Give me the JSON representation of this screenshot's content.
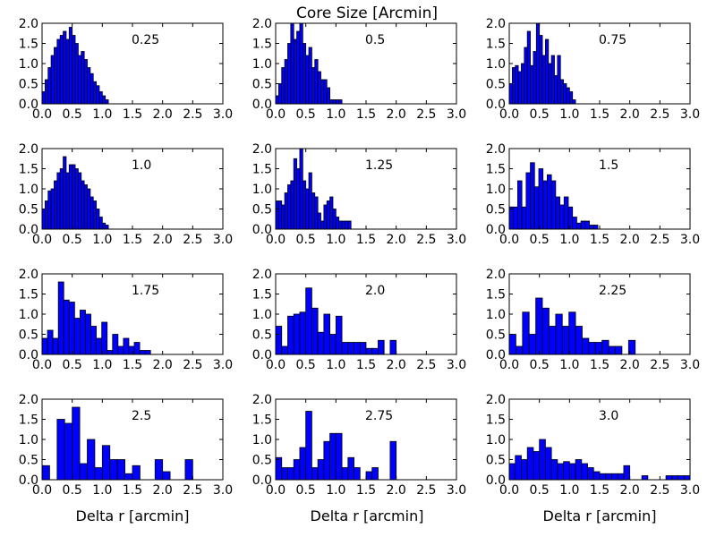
{
  "figure": {
    "title": "Core Size [Arcmin]",
    "xlabel": "Delta r [arcmin]",
    "colors": {
      "bar_fill": "#0000ff",
      "bar_edge": "#000000",
      "axes": "#000000",
      "background": "#ffffff"
    }
  },
  "chart_data": [
    {
      "type": "bar",
      "label": "0.25",
      "xlim": [
        0,
        3
      ],
      "ylim": [
        0,
        2
      ],
      "xticks": [
        "0.0",
        "0.5",
        "1.0",
        "1.5",
        "2.0",
        "2.5",
        "3.0"
      ],
      "yticks": [
        "0.0",
        "0.5",
        "1.0",
        "1.5",
        "2.0"
      ],
      "bin_width": 0.05,
      "x": [
        0.0,
        0.05,
        0.1,
        0.15,
        0.2,
        0.25,
        0.3,
        0.35,
        0.4,
        0.45,
        0.5,
        0.55,
        0.6,
        0.65,
        0.7,
        0.75,
        0.8,
        0.85,
        0.9,
        0.95,
        1.0,
        1.05
      ],
      "values": [
        0.3,
        0.6,
        0.9,
        1.2,
        1.4,
        1.6,
        1.7,
        1.8,
        1.6,
        1.9,
        1.7,
        1.5,
        1.2,
        1.3,
        1.1,
        0.9,
        0.75,
        0.55,
        0.45,
        0.3,
        0.2,
        0.1
      ]
    },
    {
      "type": "bar",
      "label": "0.5",
      "xlim": [
        0,
        3
      ],
      "ylim": [
        0,
        2
      ],
      "xticks": [
        "0.0",
        "0.5",
        "1.0",
        "1.5",
        "2.0",
        "2.5",
        "3.0"
      ],
      "yticks": [
        "0.0",
        "0.5",
        "1.0",
        "1.5",
        "2.0"
      ],
      "bin_width": 0.05,
      "x": [
        0.0,
        0.05,
        0.1,
        0.15,
        0.2,
        0.25,
        0.3,
        0.35,
        0.4,
        0.45,
        0.5,
        0.55,
        0.6,
        0.65,
        0.7,
        0.75,
        0.8,
        0.85,
        0.9,
        0.95,
        1.0,
        1.05
      ],
      "values": [
        0.2,
        0.5,
        0.9,
        1.1,
        1.5,
        2.0,
        1.6,
        1.8,
        2.0,
        1.5,
        1.2,
        1.4,
        0.9,
        1.1,
        0.8,
        0.6,
        0.6,
        0.4,
        0.1,
        0.1,
        0.1,
        0.1
      ]
    },
    {
      "type": "bar",
      "label": "0.75",
      "xlim": [
        0,
        3
      ],
      "ylim": [
        0,
        2
      ],
      "xticks": [
        "0.0",
        "0.5",
        "1.0",
        "1.5",
        "2.0",
        "2.5",
        "3.0"
      ],
      "yticks": [
        "0.0",
        "0.5",
        "1.0",
        "1.5",
        "2.0"
      ],
      "bin_width": 0.05,
      "x": [
        0.0,
        0.05,
        0.1,
        0.15,
        0.2,
        0.25,
        0.3,
        0.35,
        0.4,
        0.45,
        0.5,
        0.55,
        0.6,
        0.65,
        0.7,
        0.75,
        0.8,
        0.85,
        0.9,
        0.95,
        1.0,
        1.05
      ],
      "values": [
        0.5,
        0.9,
        0.95,
        0.8,
        1.0,
        1.4,
        1.8,
        0.95,
        1.3,
        2.0,
        1.7,
        1.2,
        1.6,
        1.0,
        1.2,
        0.7,
        1.2,
        0.6,
        0.5,
        0.4,
        0.3,
        0.1
      ]
    },
    {
      "type": "bar",
      "label": "1.0",
      "xlim": [
        0,
        3
      ],
      "ylim": [
        0,
        2
      ],
      "xticks": [
        "0.0",
        "0.5",
        "1.0",
        "1.5",
        "2.0",
        "2.5",
        "3.0"
      ],
      "yticks": [
        "0.0",
        "0.5",
        "1.0",
        "1.5",
        "2.0"
      ],
      "bin_width": 0.05,
      "x": [
        0.0,
        0.05,
        0.1,
        0.15,
        0.2,
        0.25,
        0.3,
        0.35,
        0.4,
        0.45,
        0.5,
        0.55,
        0.6,
        0.65,
        0.7,
        0.75,
        0.8,
        0.85,
        0.9,
        0.95,
        1.0,
        1.05
      ],
      "values": [
        0.5,
        0.7,
        0.95,
        1.0,
        1.2,
        1.4,
        1.5,
        1.8,
        1.4,
        1.6,
        1.6,
        1.5,
        1.4,
        1.2,
        1.1,
        1.0,
        0.8,
        0.7,
        0.5,
        0.3,
        0.15,
        0.1
      ]
    },
    {
      "type": "bar",
      "label": "1.25",
      "xlim": [
        0,
        3
      ],
      "ylim": [
        0,
        2
      ],
      "xticks": [
        "0.0",
        "0.5",
        "1.0",
        "1.5",
        "2.0",
        "2.5",
        "3.0"
      ],
      "yticks": [
        "0.0",
        "0.5",
        "1.0",
        "1.5",
        "2.0"
      ],
      "bin_width": 0.05,
      "x": [
        0.0,
        0.05,
        0.1,
        0.15,
        0.2,
        0.25,
        0.3,
        0.35,
        0.4,
        0.45,
        0.5,
        0.55,
        0.6,
        0.65,
        0.7,
        0.75,
        0.8,
        0.85,
        0.9,
        0.95,
        1.0,
        1.05,
        1.1,
        1.15,
        1.2,
        1.25
      ],
      "values": [
        0.7,
        0.7,
        0.6,
        0.9,
        1.1,
        1.2,
        1.75,
        1.5,
        2.0,
        1.2,
        1.0,
        1.4,
        0.9,
        0.8,
        0.4,
        0.2,
        0.6,
        0.7,
        0.8,
        0.5,
        0.3,
        0.2,
        0.2,
        0.2,
        0.2,
        0.0
      ]
    },
    {
      "type": "bar",
      "label": "1.5",
      "xlim": [
        0,
        3
      ],
      "ylim": [
        0,
        2
      ],
      "xticks": [
        "0.0",
        "0.5",
        "1.0",
        "1.5",
        "2.0",
        "2.5",
        "3.0"
      ],
      "yticks": [
        "0.0",
        "0.5",
        "1.0",
        "1.5",
        "2.0"
      ],
      "bin_width": 0.07,
      "x": [
        0.0,
        0.07,
        0.14,
        0.21,
        0.28,
        0.35,
        0.42,
        0.49,
        0.56,
        0.63,
        0.7,
        0.77,
        0.84,
        0.91,
        0.98,
        1.05,
        1.12,
        1.19,
        1.26,
        1.33,
        1.4
      ],
      "values": [
        0.55,
        0.55,
        1.2,
        0.55,
        1.4,
        1.65,
        1.05,
        1.5,
        1.2,
        1.35,
        1.2,
        0.8,
        0.6,
        0.8,
        0.55,
        0.3,
        0.15,
        0.2,
        0.2,
        0.1,
        0.1
      ]
    },
    {
      "type": "bar",
      "label": "1.75",
      "xlim": [
        0,
        3
      ],
      "ylim": [
        0,
        2
      ],
      "xticks": [
        "0.0",
        "0.5",
        "1.0",
        "1.5",
        "2.0",
        "2.5",
        "3.0"
      ],
      "yticks": [
        "0.0",
        "0.5",
        "1.0",
        "1.5",
        "2.0"
      ],
      "bin_width": 0.09,
      "x": [
        0.0,
        0.09,
        0.18,
        0.27,
        0.36,
        0.45,
        0.54,
        0.63,
        0.72,
        0.81,
        0.9,
        0.99,
        1.08,
        1.17,
        1.26,
        1.35,
        1.44,
        1.53,
        1.62,
        1.71,
        1.8
      ],
      "values": [
        0.4,
        0.6,
        0.4,
        1.8,
        1.35,
        1.3,
        0.9,
        1.1,
        1.0,
        0.7,
        0.4,
        0.8,
        0.1,
        0.5,
        0.2,
        0.4,
        0.2,
        0.3,
        0.1,
        0.1,
        0.0
      ]
    },
    {
      "type": "bar",
      "label": "2.0",
      "xlim": [
        0,
        3
      ],
      "ylim": [
        0,
        2
      ],
      "xticks": [
        "0.0",
        "0.5",
        "1.0",
        "1.5",
        "2.0",
        "2.5",
        "3.0"
      ],
      "yticks": [
        "0.0",
        "0.5",
        "1.0",
        "1.5",
        "2.0"
      ],
      "bin_width": 0.1,
      "x": [
        0.0,
        0.1,
        0.2,
        0.3,
        0.4,
        0.5,
        0.6,
        0.7,
        0.8,
        0.9,
        1.0,
        1.1,
        1.2,
        1.3,
        1.4,
        1.5,
        1.6,
        1.7,
        1.8,
        1.9
      ],
      "values": [
        0.7,
        0.2,
        0.95,
        1.0,
        1.05,
        1.65,
        1.15,
        0.55,
        1.0,
        0.5,
        0.95,
        0.3,
        0.3,
        0.3,
        0.3,
        0.15,
        0.15,
        0.35,
        0.0,
        0.35
      ]
    },
    {
      "type": "bar",
      "label": "2.25",
      "xlim": [
        0,
        3
      ],
      "ylim": [
        0,
        2
      ],
      "xticks": [
        "0.0",
        "0.5",
        "1.0",
        "1.5",
        "2.0",
        "2.5",
        "3.0"
      ],
      "yticks": [
        "0.0",
        "0.5",
        "1.0",
        "1.5",
        "2.0"
      ],
      "bin_width": 0.11,
      "x": [
        0.0,
        0.11,
        0.22,
        0.33,
        0.44,
        0.55,
        0.66,
        0.77,
        0.88,
        0.99,
        1.1,
        1.21,
        1.32,
        1.43,
        1.54,
        1.65,
        1.76,
        1.87,
        1.98
      ],
      "values": [
        0.5,
        0.2,
        1.05,
        0.5,
        1.4,
        1.15,
        0.7,
        1.0,
        0.7,
        1.05,
        0.7,
        0.4,
        0.3,
        0.3,
        0.35,
        0.2,
        0.2,
        0.0,
        0.35
      ]
    },
    {
      "type": "bar",
      "label": "2.5",
      "xlim": [
        0,
        3
      ],
      "ylim": [
        0,
        2
      ],
      "xticks": [
        "0.0",
        "0.5",
        "1.0",
        "1.5",
        "2.0",
        "2.5",
        "3.0"
      ],
      "yticks": [
        "0.0",
        "0.5",
        "1.0",
        "1.5",
        "2.0"
      ],
      "bin_width": 0.125,
      "x": [
        0.0,
        0.125,
        0.25,
        0.375,
        0.5,
        0.625,
        0.75,
        0.875,
        1.0,
        1.125,
        1.25,
        1.375,
        1.5,
        1.625,
        1.75,
        1.875,
        2.0,
        2.125,
        2.25,
        2.375
      ],
      "values": [
        0.35,
        0.0,
        1.5,
        1.4,
        1.8,
        0.4,
        1.0,
        0.3,
        0.85,
        0.5,
        0.5,
        0.15,
        0.35,
        0.0,
        0.0,
        0.5,
        0.2,
        0.0,
        0.0,
        0.5
      ]
    },
    {
      "type": "bar",
      "label": "2.75",
      "xlim": [
        0,
        3
      ],
      "ylim": [
        0,
        2
      ],
      "xticks": [
        "0.0",
        "0.5",
        "1.0",
        "1.5",
        "2.0",
        "2.5",
        "3.0"
      ],
      "yticks": [
        "0.0",
        "0.5",
        "1.0",
        "1.5",
        "2.0"
      ],
      "bin_width": 0.1,
      "x": [
        0.0,
        0.1,
        0.2,
        0.3,
        0.4,
        0.5,
        0.6,
        0.7,
        0.8,
        0.9,
        1.0,
        1.1,
        1.2,
        1.3,
        1.4,
        1.5,
        1.6,
        1.7,
        1.8,
        1.9
      ],
      "values": [
        0.55,
        0.3,
        0.3,
        0.5,
        0.8,
        1.7,
        0.3,
        0.5,
        0.95,
        1.15,
        1.15,
        0.3,
        0.55,
        0.3,
        0.0,
        0.2,
        0.3,
        0.0,
        0.0,
        0.95
      ]
    },
    {
      "type": "bar",
      "label": "3.0",
      "xlim": [
        0,
        3
      ],
      "ylim": [
        0,
        2
      ],
      "xticks": [
        "0.0",
        "0.5",
        "1.0",
        "1.5",
        "2.0",
        "2.5",
        "3.0"
      ],
      "yticks": [
        "0.0",
        "0.5",
        "1.0",
        "1.5",
        "2.0"
      ],
      "bin_width": 0.1,
      "x": [
        0.0,
        0.1,
        0.2,
        0.3,
        0.4,
        0.5,
        0.6,
        0.7,
        0.8,
        0.9,
        1.0,
        1.1,
        1.2,
        1.3,
        1.4,
        1.5,
        1.6,
        1.7,
        1.8,
        1.9,
        2.0,
        2.1,
        2.2,
        2.3,
        2.4,
        2.5,
        2.6,
        2.7,
        2.8,
        2.9
      ],
      "values": [
        0.4,
        0.6,
        0.5,
        0.8,
        0.7,
        1.0,
        0.8,
        0.5,
        0.4,
        0.45,
        0.4,
        0.5,
        0.4,
        0.3,
        0.2,
        0.15,
        0.15,
        0.15,
        0.15,
        0.35,
        0.0,
        0.0,
        0.1,
        0.0,
        0.0,
        0.0,
        0.1,
        0.1,
        0.1,
        0.1
      ]
    }
  ]
}
